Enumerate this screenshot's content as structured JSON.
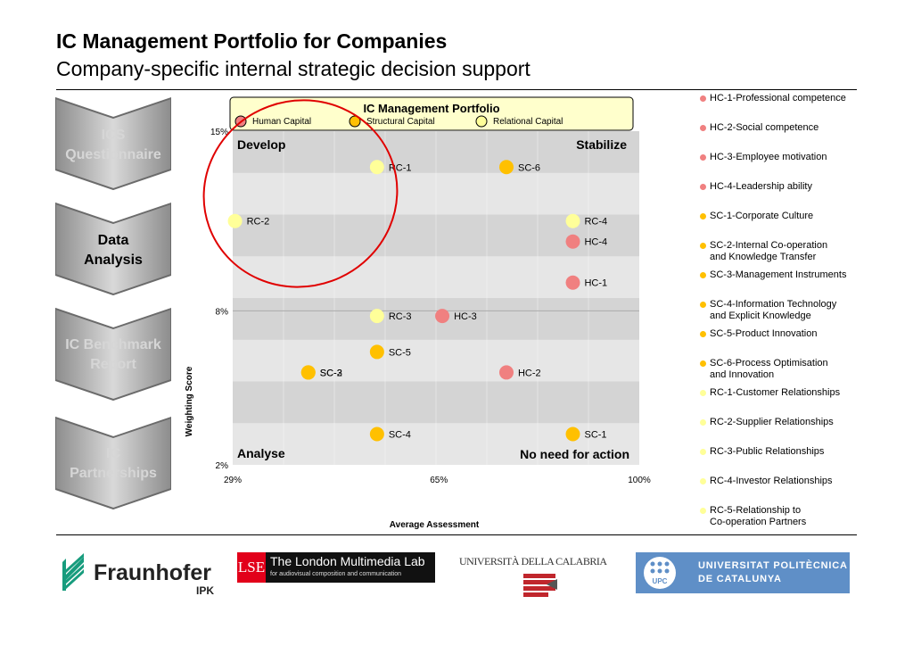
{
  "header": {
    "title": "IC Management Portfolio for Companies",
    "subtitle": "Company-specific internal strategic decision support"
  },
  "steps": [
    {
      "label": "ICS\nQuestionnaire",
      "active": false
    },
    {
      "label": "Data\nAnalysis",
      "active": true
    },
    {
      "label": "IC Benchmark\nReport",
      "active": false
    },
    {
      "label": "IC\nPartnerships",
      "active": false
    }
  ],
  "chart_data": {
    "type": "scatter",
    "title": "IC Management Portfolio",
    "xlabel": "Average Assessment",
    "ylabel": "Weighting Score",
    "x_ticks": [
      "29%",
      "65%",
      "100%"
    ],
    "y_ticks": [
      "15%",
      "8%",
      "2%"
    ],
    "xlim": [
      29,
      100
    ],
    "ylim": [
      2,
      15
    ],
    "grid": "horizontal bands",
    "legend_position": "top",
    "quadrants": {
      "top_left": "Develop",
      "top_right": "Stabilize",
      "bottom_left": "Analyse",
      "bottom_right": "No need for action"
    },
    "series": [
      {
        "name": "Human Capital",
        "color": "#f08080",
        "points": [
          {
            "label": "HC-4",
            "x": 88.4,
            "y": 10.7
          },
          {
            "label": "HC-1",
            "x": 88.4,
            "y": 9.1
          },
          {
            "label": "HC-3",
            "x": 65.6,
            "y": 7.8
          },
          {
            "label": "HC-2",
            "x": 76.8,
            "y": 5.6
          }
        ]
      },
      {
        "name": "Structural Capital",
        "color": "#ffc000",
        "points": [
          {
            "label": "SC-6",
            "x": 76.8,
            "y": 13.6
          },
          {
            "label": "SC-5",
            "x": 54.2,
            "y": 6.4
          },
          {
            "label": "SC-3",
            "x": 42.2,
            "y": 5.6
          },
          {
            "label": "SC-2",
            "x": 42.2,
            "y": 5.6
          },
          {
            "label": "SC-4",
            "x": 54.2,
            "y": 3.2
          },
          {
            "label": "SC-1",
            "x": 88.4,
            "y": 3.2
          }
        ]
      },
      {
        "name": "Relational Capital",
        "color": "#ffff99",
        "points": [
          {
            "label": "RC-1",
            "x": 54.2,
            "y": 13.6
          },
          {
            "label": "RC-2",
            "x": 29.4,
            "y": 11.5
          },
          {
            "label": "RC-4",
            "x": 88.4,
            "y": 11.5
          },
          {
            "label": "RC-3",
            "x": 54.2,
            "y": 7.8
          }
        ]
      }
    ]
  },
  "indicators": [
    {
      "text": "HC-1-Professional competence",
      "color": "#f08080"
    },
    {
      "text": "HC-2-Social competence",
      "color": "#f08080"
    },
    {
      "text": "HC-3-Employee motivation",
      "color": "#f08080"
    },
    {
      "text": "HC-4-Leadership ability",
      "color": "#f08080"
    },
    {
      "text": "SC-1-Corporate Culture",
      "color": "#ffc000"
    },
    {
      "text": "SC-2-Internal Co-operation\n and Knowledge Transfer",
      "color": "#ffc000"
    },
    {
      "text": "SC-3-Management Instruments",
      "color": "#ffc000"
    },
    {
      "text": "SC-4-Information Technology\n and Explicit Knowledge",
      "color": "#ffc000"
    },
    {
      "text": "SC-5-Product Innovation",
      "color": "#ffc000"
    },
    {
      "text": "SC-6-Process Optimisation\n and Innovation",
      "color": "#ffc000"
    },
    {
      "text": "RC-1-Customer Relationships",
      "color": "#ffff99"
    },
    {
      "text": "RC-2-Supplier Relationships",
      "color": "#ffff99"
    },
    {
      "text": "RC-3-Public Relationships",
      "color": "#ffff99"
    },
    {
      "text": "RC-4-Investor Relationships",
      "color": "#ffff99"
    },
    {
      "text": "RC-5-Relationship to\n Co-operation Partners",
      "color": "#ffff99"
    }
  ],
  "logos": {
    "fraunhofer": {
      "name": "Fraunhofer",
      "sub": "IPK"
    },
    "lse": {
      "mark": "LSE",
      "name": "The London Multimedia Lab",
      "sub": "for audiovisual composition and communication"
    },
    "calabria": {
      "name": "UNIVERSITÀ DELLA CALABRIA"
    },
    "upc": {
      "mark": "UPC",
      "line1": "UNIVERSITAT POLITÈCNICA",
      "line2": "DE CATALUNYA"
    }
  }
}
